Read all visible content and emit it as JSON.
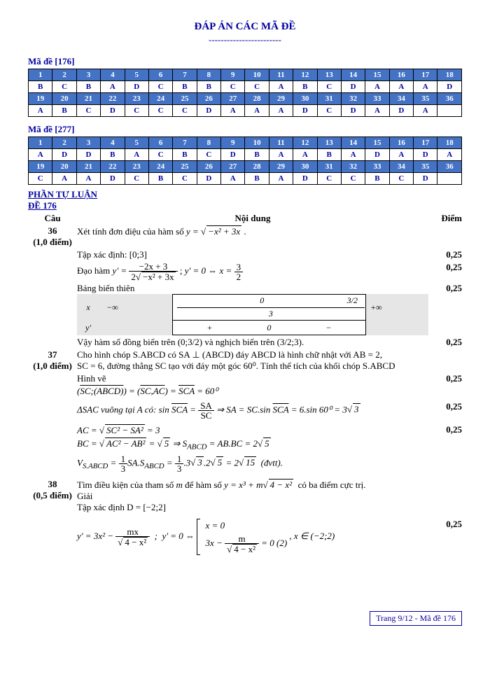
{
  "title": "ĐÁP ÁN CÁC MÃ ĐỀ",
  "dashes": "------------------------",
  "grids": [
    {
      "label": "Mã đề [176]",
      "rows": [
        {
          "h": [
            "1",
            "2",
            "3",
            "4",
            "5",
            "6",
            "7",
            "8",
            "9",
            "10",
            "11",
            "12",
            "13",
            "14",
            "15",
            "16",
            "17",
            "18"
          ]
        },
        {
          "a": [
            "B",
            "C",
            "B",
            "A",
            "D",
            "C",
            "B",
            "B",
            "C",
            "C",
            "A",
            "B",
            "C",
            "D",
            "A",
            "A",
            "A",
            "D"
          ]
        },
        {
          "h": [
            "19",
            "20",
            "21",
            "22",
            "23",
            "24",
            "25",
            "26",
            "27",
            "28",
            "29",
            "30",
            "31",
            "32",
            "33",
            "34",
            "35",
            "36"
          ]
        },
        {
          "a": [
            "A",
            "B",
            "C",
            "D",
            "C",
            "C",
            "C",
            "D",
            "A",
            "A",
            "A",
            "D",
            "C",
            "D",
            "A",
            "D",
            "A",
            ""
          ]
        }
      ]
    },
    {
      "label": "Mã đề [277]",
      "rows": [
        {
          "h": [
            "1",
            "2",
            "3",
            "4",
            "5",
            "6",
            "7",
            "8",
            "9",
            "10",
            "11",
            "12",
            "13",
            "14",
            "15",
            "16",
            "17",
            "18"
          ]
        },
        {
          "a": [
            "A",
            "D",
            "D",
            "B",
            "A",
            "C",
            "B",
            "C",
            "D",
            "B",
            "A",
            "A",
            "B",
            "A",
            "D",
            "A",
            "D",
            "A"
          ]
        },
        {
          "h": [
            "19",
            "20",
            "21",
            "22",
            "23",
            "24",
            "25",
            "26",
            "27",
            "28",
            "29",
            "30",
            "31",
            "32",
            "33",
            "34",
            "35",
            "36"
          ]
        },
        {
          "a": [
            "C",
            "A",
            "A",
            "D",
            "C",
            "B",
            "C",
            "D",
            "A",
            "B",
            "A",
            "D",
            "C",
            "C",
            "B",
            "C",
            "D",
            ""
          ]
        }
      ]
    }
  ],
  "tuluan": "PHẦN TỰ LUẬN",
  "de": "ĐỀ 176",
  "header": {
    "cau": "Câu",
    "nd": "Nội dung",
    "diem": "Điểm"
  },
  "q36": {
    "num": "36",
    "pts": "(1,0 điểm)",
    "l1a": "Xét tính đơn điệu của hàm số ",
    "l1b": " .",
    "l2": "Tập xác định: [0;3]",
    "l3a": "Đạo hàm ",
    "l3b": " ; ",
    "bbt": "Bảng biến thiên",
    "vt": {
      "x": "x",
      "yp": "y'",
      "ninf": "−∞",
      "z": "0",
      "thr": "3",
      "half": "3/2",
      "pinf": "+∞",
      "plus": "+",
      "minus": "−"
    },
    "l4": "Vậy hàm số đồng biến trên (0;3/2) và nghịch biến trên (3/2;3).",
    "scores": [
      "0,25",
      "0,25",
      "0,25",
      "0,25"
    ]
  },
  "q37": {
    "num": "37",
    "pts": "(1,0 điểm)",
    "l1": "Cho hình chóp S.ABCD có SA ⊥ (ABCD) đáy ABCD là hình chữ nhật với AB = 2,",
    "l2": "SC = 6, đường thẳng SC tạo với đáy một góc 60⁰. Tính thể tích của khối chóp S.ABCD",
    "hv": "Hình vẽ",
    "eq1": "(SC;(ABCD)) = (SC,AC) = SCA = 60⁰",
    "eq2a": "ΔSAC vuông tại A có: sin SCA = ",
    "eq2b": " ⇒ SA = SC.sin SCA = 6.sin 60⁰ = 3√3",
    "eq3": "AC = √(SC² − SA²) = 3",
    "eq4": "BC = √(AC² − AB²) = √5 ⇒ S_ABCD = AB.BC = 2√5",
    "eq5a": "V_S.ABCD = ",
    "eq5b": "SA.S_ABCD = ",
    "eq5c": ".3√3.2√5 = 2√15  (đvtt).",
    "scores": [
      "0,25",
      "0,25",
      "0,25"
    ]
  },
  "q38": {
    "num": "38",
    "pts": "(0,5 điểm)",
    "l1": "Tìm điều kiện của tham số m để hàm số y = x³ + m√(4 − x²)  có ba điểm cực trị.",
    "giai": "Giải",
    "l2": "Tập xác định D = [−2;2]",
    "eq1a": "y' = 3x² − ",
    "eq1b": " ;  y' = 0 ⇔ ",
    "case1": "x = 0",
    "case2a": "3x − ",
    "case2b": " = 0 (2)",
    "tail": ", x ∈ (−2;2)",
    "score": "0,25"
  },
  "footer": "Trang 9/12 - Mã đề 176"
}
